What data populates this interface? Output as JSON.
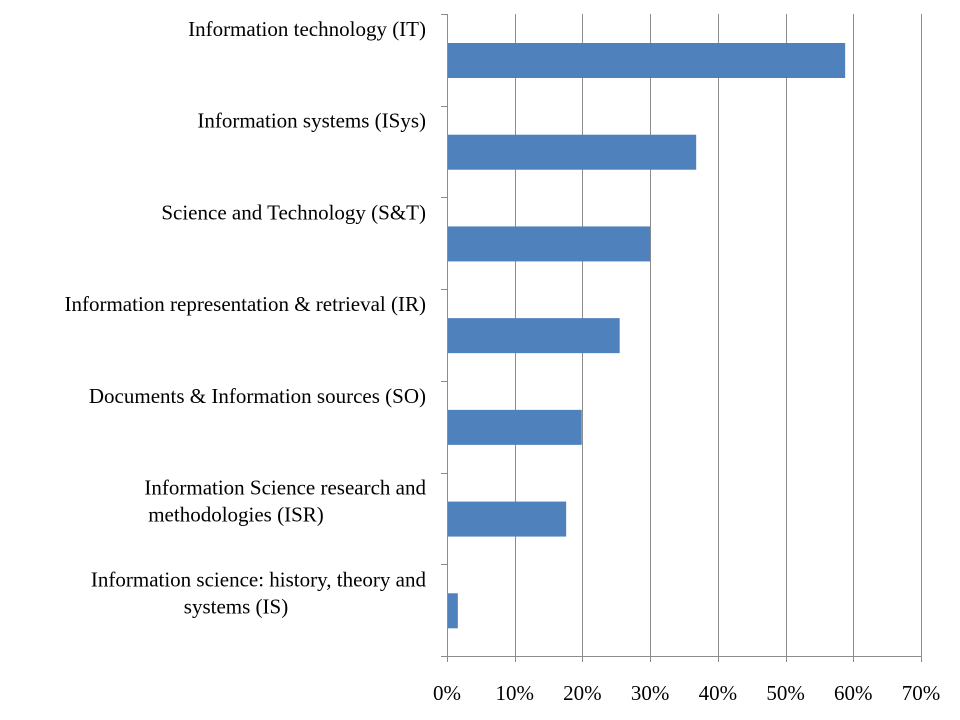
{
  "chart_data": {
    "type": "bar",
    "orientation": "horizontal",
    "categories": [
      [
        "Information technology (IT)"
      ],
      [
        "Information systems (ISys)"
      ],
      [
        "Science and Technology (S&T)"
      ],
      [
        "Information representation & retrieval (IR)"
      ],
      [
        "Documents & Information sources (SO)"
      ],
      [
        "Information Science research and",
        "methodologies (ISR)"
      ],
      [
        "Information science: history, theory and",
        "systems (IS)"
      ]
    ],
    "values": [
      58.8,
      36.8,
      30.0,
      25.5,
      19.9,
      17.6,
      1.6
    ],
    "xlim": [
      0,
      70
    ],
    "ticks": [
      0,
      10,
      20,
      30,
      40,
      50,
      60,
      70
    ],
    "tick_labels": [
      "0%",
      "10%",
      "20%",
      "30%",
      "40%",
      "50%",
      "60%",
      "70%"
    ],
    "grid": true,
    "bar_color": "#4f81bd",
    "title": "",
    "xlabel": "",
    "ylabel": ""
  }
}
